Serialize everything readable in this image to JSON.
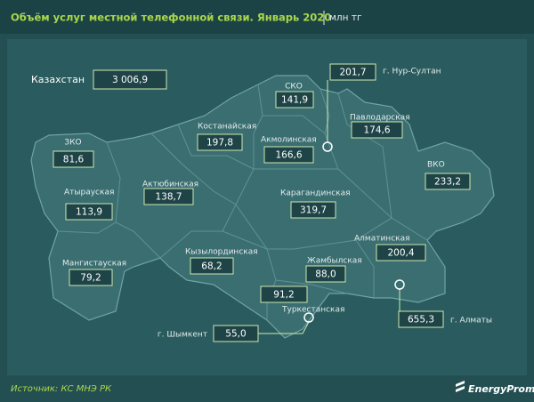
{
  "header": {
    "title": "Объём услуг местной телефонной связи. Январь 2020",
    "unit": "млн тг"
  },
  "total": {
    "label": "Казахстан",
    "value": "3 006,9"
  },
  "regions": [
    {
      "name": "г. Нур-Султан",
      "value": "201,7"
    },
    {
      "name": "СКО",
      "value": "141,9"
    },
    {
      "name": "Павлодарская",
      "value": "174,6"
    },
    {
      "name": "Костанайская",
      "value": "197,8"
    },
    {
      "name": "Акмолинская",
      "value": "166,6"
    },
    {
      "name": "ЗКО",
      "value": "81,6"
    },
    {
      "name": "ВКО",
      "value": "233,2"
    },
    {
      "name": "Актюбинская",
      "value": "138,7"
    },
    {
      "name": "Атырауская",
      "value": "113,9"
    },
    {
      "name": "Карагандинская",
      "value": "319,7"
    },
    {
      "name": "Кызылординская",
      "value": "68,2"
    },
    {
      "name": "Алматинская",
      "value": "200,4"
    },
    {
      "name": "Жамбылская",
      "value": "88,0"
    },
    {
      "name": "Мангистауская",
      "value": "79,2"
    },
    {
      "name": "Туркестанская",
      "value": "91,2"
    },
    {
      "name": "г. Шымкент",
      "value": "55,0"
    },
    {
      "name": "г. Алматы",
      "value": "655,3"
    }
  ],
  "footer": {
    "source": "Источник: КС МНЭ РК",
    "brand": "EnergyProm"
  }
}
